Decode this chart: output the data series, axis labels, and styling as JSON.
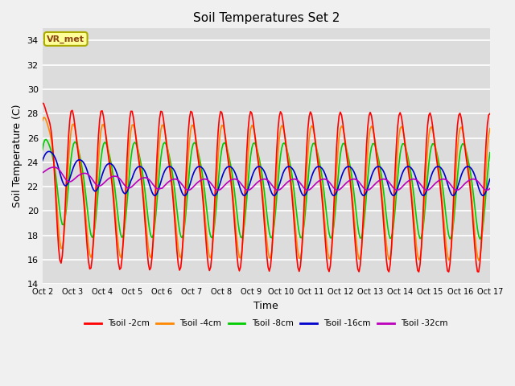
{
  "title": "Soil Temperatures Set 2",
  "xlabel": "Time",
  "ylabel": "Soil Temperature (C)",
  "ylim": [
    14,
    35
  ],
  "yticks": [
    14,
    16,
    18,
    20,
    22,
    24,
    26,
    28,
    30,
    32,
    34
  ],
  "bg_color": "#dcdcdc",
  "fig_color": "#f0f0f0",
  "grid_color": "#ffffff",
  "series_colors": {
    "2cm": "#ff0000",
    "4cm": "#ff8800",
    "8cm": "#00cc00",
    "16cm": "#0000cc",
    "32cm": "#bb00bb"
  },
  "legend_labels": [
    "Tsoil -2cm",
    "Tsoil -4cm",
    "Tsoil -8cm",
    "Tsoil -16cm",
    "Tsoil -32cm"
  ],
  "xtick_labels": [
    "Oct 2",
    "Oct 3",
    "Oct 4",
    "Oct 5",
    "Oct 6",
    "Oct 7",
    "Oct 8",
    "Oct 9",
    "Oct 10",
    "Oct 11",
    "Oct 12",
    "Oct 13",
    "Oct 14",
    "Oct 15",
    "Oct 16",
    "Oct 17"
  ],
  "annotation_text": "VR_met",
  "annotation_color": "#8B4513",
  "annotation_bg": "#ffff99",
  "annotation_border": "#aaaa00"
}
